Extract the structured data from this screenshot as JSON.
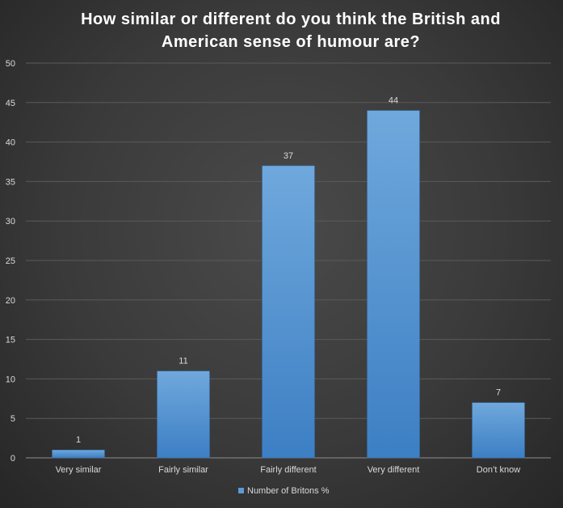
{
  "chart_data": {
    "type": "bar",
    "title_lines": [
      "How similar or different do you think the British and",
      "American sense of humour are?"
    ],
    "categories": [
      "Very similar",
      "Fairly similar",
      "Fairly different",
      "Very different",
      "Don’t know"
    ],
    "series": [
      {
        "name": "Number of Britons %",
        "values": [
          1,
          11,
          37,
          44,
          7
        ]
      }
    ],
    "ylim": [
      0,
      50
    ],
    "yticks": [
      0,
      5,
      10,
      15,
      20,
      25,
      30,
      35,
      40,
      45,
      50
    ],
    "grid": true,
    "legend_position": "bottom",
    "bar_color": "#5b9bd5"
  }
}
